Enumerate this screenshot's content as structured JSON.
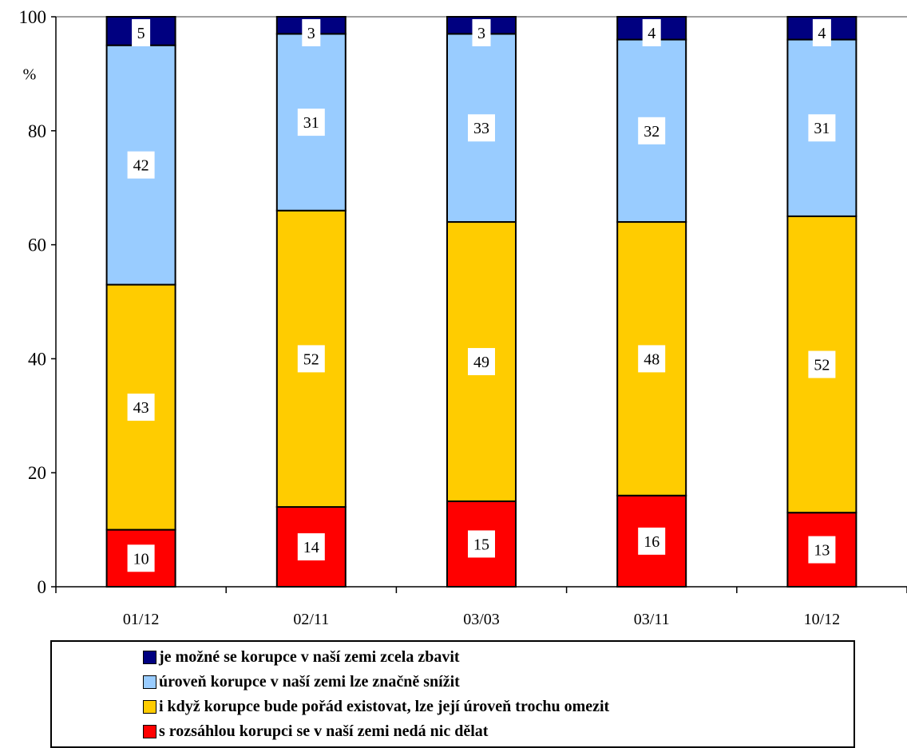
{
  "chart_data": {
    "type": "bar",
    "stacked": true,
    "categories": [
      "01/12",
      "02/11",
      "03/03",
      "03/11",
      "10/12"
    ],
    "series": [
      {
        "name": "s rozsáhlou korupci se v naší zemi nedá nic dělat",
        "color": "#ff0000",
        "values": [
          10,
          14,
          15,
          16,
          13
        ]
      },
      {
        "name": "i když korupce bude pořád existovat, lze její úroveň trochu omezit",
        "color": "#ffcc00",
        "values": [
          43,
          52,
          49,
          48,
          52
        ]
      },
      {
        "name": "úroveň korupce v naší zemi lze značně snížit",
        "color": "#99ccff",
        "values": [
          42,
          31,
          33,
          32,
          31
        ]
      },
      {
        "name": "je možné se korupce v naší zemi zcela zbavit",
        "color": "#000080",
        "values": [
          5,
          3,
          3,
          4,
          4
        ]
      }
    ],
    "ylabel": "%",
    "ylim": [
      0,
      100
    ],
    "yticks": [
      0,
      20,
      40,
      60,
      80,
      100
    ],
    "grid": false,
    "legend_position": "bottom"
  }
}
